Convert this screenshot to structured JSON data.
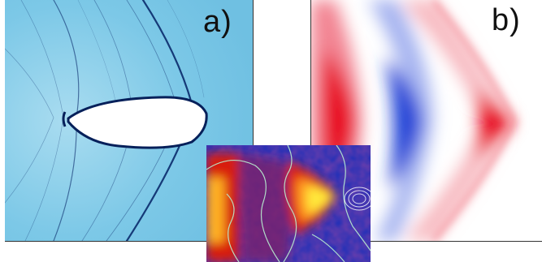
{
  "panels": {
    "a": {
      "label": "a)"
    },
    "b": {
      "label": "b)"
    }
  },
  "colors": {
    "panel_a_background": "#79c7e6",
    "panel_a_lines": "#0a2a6b",
    "panel_b_red": "#e8001c",
    "panel_b_blue": "#1f3fd6",
    "inset_background": "#1d2fb8",
    "inset_hot": "#ffe83a",
    "inset_contour": "#b9f0d0"
  }
}
